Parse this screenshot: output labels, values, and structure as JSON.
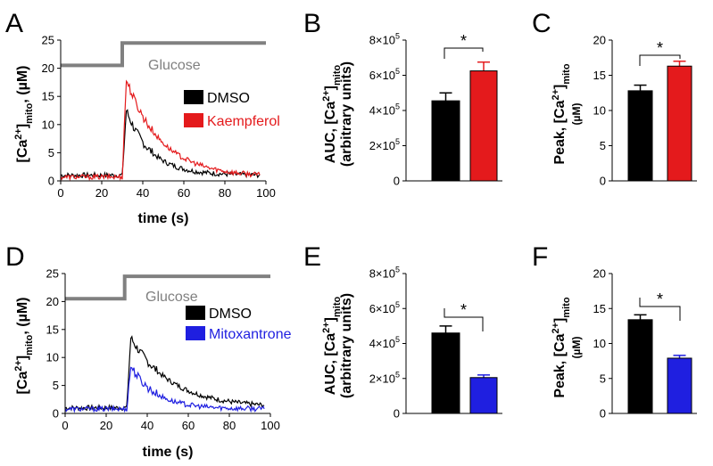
{
  "panels": [
    "A",
    "B",
    "C",
    "D",
    "E",
    "F"
  ],
  "colors": {
    "black": "#000000",
    "red": "#e41a1c",
    "blue": "#1f1fe0",
    "gray": "#808080"
  },
  "chart_data": [
    {
      "id": "A",
      "type": "line",
      "xlabel": "time (s)",
      "ylabel": "[Ca2+]mito, (µM)",
      "xlim": [
        0,
        100
      ],
      "ylim": [
        0,
        25
      ],
      "xticks": [
        0,
        20,
        40,
        60,
        80,
        100
      ],
      "yticks": [
        0,
        5,
        10,
        15,
        20,
        25
      ],
      "annotation": "Glucose",
      "stimulus": {
        "low": 20.5,
        "high": 24.5,
        "step_at": 30
      },
      "legend": [
        "DMSO",
        "Kaempferol"
      ],
      "series": [
        {
          "name": "DMSO",
          "color": "#000000",
          "baseline": 1.0,
          "onset": 30,
          "peak_t": 32,
          "peak": 12.5,
          "tau": 12
        },
        {
          "name": "Kaempferol",
          "color": "#e41a1c",
          "baseline": 0.7,
          "onset": 30,
          "peak_t": 32,
          "peak": 18.0,
          "tau": 17
        }
      ]
    },
    {
      "id": "B",
      "type": "bar",
      "ylabel_line1": "AUC, [Ca2+]mito",
      "ylabel_line2": "(arbitrary units)",
      "ylim": [
        0,
        800000
      ],
      "yticks": [
        "0",
        "2×10⁵",
        "4×10⁵",
        "6×10⁵",
        "8×10⁵"
      ],
      "yticks_values": [
        0,
        200000,
        400000,
        600000,
        800000
      ],
      "significance": "*",
      "bars": [
        {
          "value": 455000,
          "error": 45000,
          "color": "#000000"
        },
        {
          "value": 625000,
          "error": 50000,
          "color": "#e41a1c"
        }
      ]
    },
    {
      "id": "C",
      "type": "bar",
      "ylabel_line1": "Peak, [Ca2+]mito",
      "ylabel_line2": "(µM)",
      "ylim": [
        0,
        20
      ],
      "yticks": [
        "0",
        "5",
        "10",
        "15",
        "20"
      ],
      "yticks_values": [
        0,
        5,
        10,
        15,
        20
      ],
      "significance": "*",
      "bars": [
        {
          "value": 12.8,
          "error": 0.8,
          "color": "#000000"
        },
        {
          "value": 16.3,
          "error": 0.7,
          "color": "#e41a1c"
        }
      ]
    },
    {
      "id": "D",
      "type": "line",
      "xlabel": "time (s)",
      "ylabel": "[Ca2+]mito, (µM)",
      "xlim": [
        0,
        100
      ],
      "ylim": [
        0,
        25
      ],
      "xticks": [
        0,
        20,
        40,
        60,
        80,
        100
      ],
      "yticks": [
        0,
        5,
        10,
        15,
        20,
        25
      ],
      "annotation": "Glucose",
      "stimulus": {
        "low": 20.5,
        "high": 24.5,
        "step_at": 29
      },
      "legend": [
        "DMSO",
        "Mitoxantrone"
      ],
      "series": [
        {
          "name": "DMSO",
          "color": "#000000",
          "baseline": 1.0,
          "onset": 30,
          "peak_t": 32,
          "peak": 13.5,
          "tau": 20
        },
        {
          "name": "Mitoxantrone",
          "color": "#1f1fe0",
          "baseline": 0.8,
          "onset": 30,
          "peak_t": 32,
          "peak": 8.5,
          "tau": 12
        }
      ]
    },
    {
      "id": "E",
      "type": "bar",
      "ylabel_line1": "AUC, [Ca2+]mito",
      "ylabel_line2": "(arbitrary units)",
      "ylim": [
        0,
        800000
      ],
      "yticks": [
        "0",
        "2×10⁵",
        "4×10⁵",
        "6×10⁵",
        "8×10⁵"
      ],
      "yticks_values": [
        0,
        200000,
        400000,
        600000,
        800000
      ],
      "significance": "*",
      "bars": [
        {
          "value": 460000,
          "error": 40000,
          "color": "#000000"
        },
        {
          "value": 205000,
          "error": 15000,
          "color": "#1f1fe0"
        }
      ]
    },
    {
      "id": "F",
      "type": "bar",
      "ylabel_line1": "Peak, [Ca2+]mito",
      "ylabel_line2": "(µM)",
      "ylim": [
        0,
        20
      ],
      "yticks": [
        "0",
        "5",
        "10",
        "15",
        "20"
      ],
      "yticks_values": [
        0,
        5,
        10,
        15,
        20
      ],
      "significance": "*",
      "bars": [
        {
          "value": 13.4,
          "error": 0.7,
          "color": "#000000"
        },
        {
          "value": 7.9,
          "error": 0.4,
          "color": "#1f1fe0"
        }
      ]
    }
  ]
}
